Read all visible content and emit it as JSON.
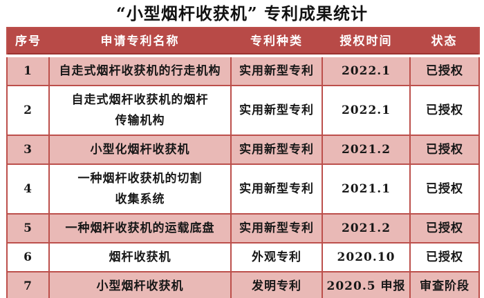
{
  "title": "“小型烟杆收获机” 专利成果统计",
  "colors": {
    "header_bg": "#b84a47",
    "header_text": "#ffffff",
    "header_divider_line": "#9c3431",
    "row_alt_bg": "#e9b9b6",
    "row_bg": "#ffffff",
    "border": "#bc4f4b",
    "body_text": "#171717"
  },
  "table": {
    "headers": [
      "序号",
      "申请专利名称",
      "专利种类",
      "授权时间",
      "状态"
    ],
    "rows": [
      {
        "index": "1",
        "name": "自走式烟杆收获机的行走机构",
        "type": "实用新型专利",
        "time": "2022.1",
        "status": "已授权"
      },
      {
        "index": "2",
        "name": "自走式烟杆收获机的烟杆\n传输机构",
        "type": "实用新型专利",
        "time": "2022.1",
        "status": "已授权"
      },
      {
        "index": "3",
        "name": "小型化烟杆收获机",
        "type": "实用新型专利",
        "time": "2021.2",
        "status": "已授权"
      },
      {
        "index": "4",
        "name": "一种烟杆收获机的切割\n收集系统",
        "type": "实用新型专利",
        "time": "2021.1",
        "status": "已授权"
      },
      {
        "index": "5",
        "name": "一种烟杆收获机的运载底盘",
        "type": "实用新型专利",
        "time": "2021.2",
        "status": "已授权"
      },
      {
        "index": "6",
        "name": "烟杆收获机",
        "type": "外观专利",
        "time": "2020.10",
        "status": "已授权"
      },
      {
        "index": "7",
        "name": "小型烟杆收获机",
        "type": "发明专利",
        "time": "2020.5 申报",
        "status": "审查阶段"
      }
    ]
  }
}
